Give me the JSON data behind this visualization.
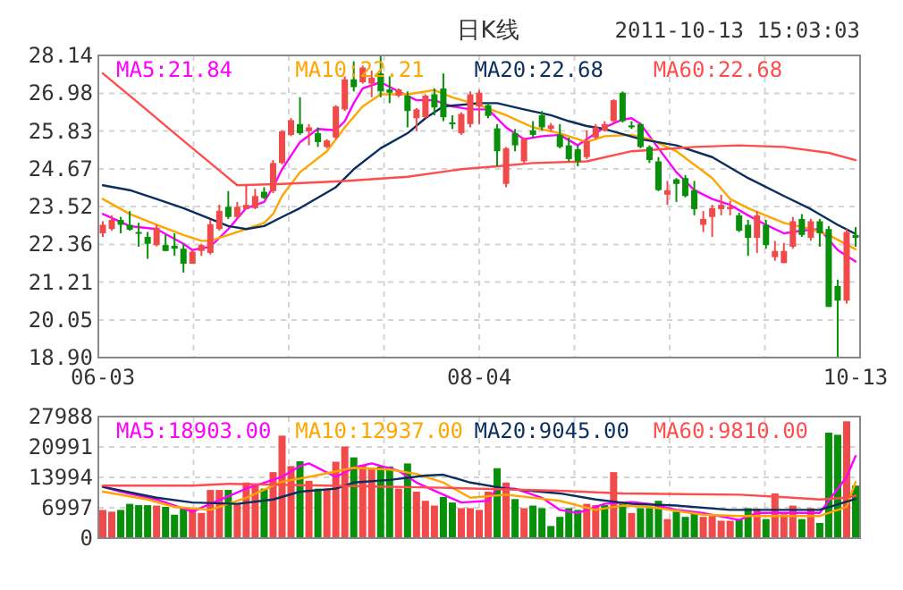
{
  "chart_data": [
    {
      "type": "candlestick",
      "title": "日K线",
      "annotations": [
        "2011-10-13 15:03:03"
      ],
      "categories": [
        "06-03",
        null,
        null,
        null,
        null,
        null,
        null,
        null,
        null,
        null,
        null,
        null,
        null,
        null,
        null,
        null,
        null,
        null,
        null,
        null,
        null,
        null,
        null,
        null,
        null,
        null,
        null,
        null,
        null,
        null,
        null,
        null,
        null,
        null,
        null,
        null,
        null,
        null,
        null,
        null,
        null,
        null,
        "08-04",
        null,
        null,
        null,
        null,
        null,
        null,
        null,
        null,
        null,
        null,
        null,
        null,
        null,
        null,
        null,
        null,
        null,
        null,
        null,
        null,
        null,
        null,
        null,
        null,
        null,
        null,
        null,
        null,
        null,
        null,
        null,
        null,
        null,
        null,
        null,
        null,
        null,
        null,
        null,
        null,
        null,
        "10-13"
      ],
      "ohlc": [
        [
          22.7,
          23.07,
          22.59,
          22.96
        ],
        [
          22.83,
          23.25,
          22.78,
          23.11
        ],
        [
          23.11,
          23.2,
          22.7,
          22.96
        ],
        [
          22.96,
          23.38,
          22.78,
          22.81
        ],
        [
          22.74,
          23.02,
          22.29,
          22.7
        ],
        [
          22.59,
          22.74,
          21.92,
          22.38
        ],
        [
          22.34,
          22.96,
          22.3,
          22.87
        ],
        [
          22.34,
          22.65,
          22.16,
          22.16
        ],
        [
          22.32,
          22.7,
          22.01,
          22.23
        ],
        [
          22.23,
          22.38,
          21.5,
          21.77
        ],
        [
          21.77,
          22.19,
          21.77,
          22.14
        ],
        [
          22.16,
          22.38,
          22.01,
          22.34
        ],
        [
          22.1,
          23.11,
          22.05,
          22.98
        ],
        [
          22.83,
          23.57,
          22.78,
          23.39
        ],
        [
          23.51,
          23.99,
          23.14,
          23.2
        ],
        [
          23.2,
          23.66,
          23.14,
          23.51
        ],
        [
          23.44,
          24.17,
          23.44,
          23.57
        ],
        [
          23.47,
          24.06,
          23.44,
          23.84
        ],
        [
          23.97,
          24.11,
          23.75,
          23.78
        ],
        [
          23.99,
          24.94,
          23.93,
          24.85
        ],
        [
          24.85,
          25.85,
          24.81,
          25.82
        ],
        [
          25.71,
          26.22,
          25.67,
          26.16
        ],
        [
          26.04,
          26.86,
          25.71,
          25.76
        ],
        [
          25.82,
          26.04,
          25.39,
          25.94
        ],
        [
          25.76,
          25.94,
          25.34,
          25.49
        ],
        [
          25.34,
          25.58,
          25.3,
          25.54
        ],
        [
          25.63,
          26.62,
          25.58,
          26.58
        ],
        [
          26.49,
          27.5,
          26.44,
          27.41
        ],
        [
          27.41,
          27.96,
          27.04,
          27.17
        ],
        [
          27.32,
          27.83,
          27.28,
          27.77
        ],
        [
          27.28,
          27.68,
          26.86,
          27.46
        ],
        [
          27.59,
          28.14,
          26.86,
          27.04
        ],
        [
          27.1,
          27.5,
          26.68,
          27.0
        ],
        [
          26.91,
          27.13,
          26.86,
          27.1
        ],
        [
          26.91,
          27.04,
          25.94,
          26.44
        ],
        [
          26.22,
          26.53,
          25.82,
          26.49
        ],
        [
          26.25,
          26.95,
          26.22,
          26.91
        ],
        [
          26.95,
          27.13,
          26.31,
          26.55
        ],
        [
          27.13,
          27.59,
          26.13,
          26.25
        ],
        [
          26.09,
          26.31,
          25.89,
          26.04
        ],
        [
          25.76,
          26.4,
          25.71,
          26.35
        ],
        [
          26.04,
          27.04,
          25.94,
          26.95
        ],
        [
          26.58,
          27.08,
          26.04,
          27.0
        ],
        [
          26.62,
          26.68,
          26.22,
          26.29
        ],
        [
          25.91,
          26.04,
          24.75,
          25.21
        ],
        [
          24.21,
          25.34,
          24.11,
          25.3
        ],
        [
          25.76,
          25.89,
          25.21,
          25.39
        ],
        [
          24.9,
          25.63,
          24.86,
          25.58
        ],
        [
          25.85,
          26.13,
          25.63,
          25.71
        ],
        [
          26.31,
          26.44,
          25.85,
          25.94
        ],
        [
          25.89,
          26.07,
          25.82,
          26.0
        ],
        [
          25.71,
          26.04,
          25.3,
          25.34
        ],
        [
          25.39,
          25.63,
          24.9,
          24.97
        ],
        [
          25.27,
          25.39,
          24.75,
          24.9
        ],
        [
          25.03,
          25.85,
          24.97,
          25.52
        ],
        [
          25.63,
          26.04,
          25.58,
          25.94
        ],
        [
          25.85,
          26.13,
          25.82,
          26.04
        ],
        [
          26.13,
          26.8,
          26.09,
          26.77
        ],
        [
          27.0,
          27.04,
          26.09,
          26.13
        ],
        [
          26.0,
          26.13,
          25.89,
          25.94
        ],
        [
          26.04,
          26.07,
          25.3,
          25.34
        ],
        [
          25.34,
          25.39,
          24.85,
          24.94
        ],
        [
          24.9,
          25.03,
          23.99,
          24.02
        ],
        [
          23.88,
          24.3,
          23.57,
          24.02
        ],
        [
          24.35,
          24.39,
          23.66,
          24.21
        ],
        [
          24.39,
          24.48,
          23.8,
          23.84
        ],
        [
          24.02,
          24.3,
          23.25,
          23.44
        ],
        [
          22.96,
          23.38,
          22.74,
          23.14
        ],
        [
          23.2,
          23.57,
          22.59,
          23.47
        ],
        [
          23.44,
          23.88,
          23.25,
          23.57
        ],
        [
          23.44,
          23.69,
          23.25,
          23.51
        ],
        [
          23.25,
          23.33,
          22.74,
          22.78
        ],
        [
          22.96,
          23.11,
          22.01,
          22.56
        ],
        [
          22.56,
          23.38,
          22.1,
          23.25
        ],
        [
          22.96,
          23.11,
          22.23,
          22.34
        ],
        [
          21.97,
          22.47,
          21.86,
          22.16
        ],
        [
          21.79,
          22.41,
          21.79,
          22.16
        ],
        [
          22.29,
          23.2,
          22.23,
          23.07
        ],
        [
          23.14,
          23.29,
          22.59,
          22.65
        ],
        [
          22.56,
          23.14,
          22.47,
          23.07
        ],
        [
          23.07,
          23.14,
          22.29,
          22.7
        ],
        [
          22.83,
          22.92,
          20.45,
          20.45
        ],
        [
          21.09,
          21.28,
          18.9,
          20.64
        ],
        [
          20.64,
          22.83,
          20.55,
          22.74
        ],
        [
          22.65,
          22.89,
          22.29,
          22.56
        ]
      ],
      "colors": [
        "#f04a4a",
        "#f04a4a",
        "#08900a",
        "#08900a",
        "#08900a",
        "#08900a",
        "#f04a4a",
        "#08900a",
        "#08900a",
        "#08900a",
        "#f04a4a",
        "#f04a4a",
        "#f04a4a",
        "#f04a4a",
        "#08900a",
        "#f04a4a",
        "#f04a4a",
        "#f04a4a",
        "#08900a",
        "#f04a4a",
        "#f04a4a",
        "#f04a4a",
        "#08900a",
        "#f04a4a",
        "#08900a",
        "#f04a4a",
        "#f04a4a",
        "#f04a4a",
        "#08900a",
        "#f04a4a",
        "#f04a4a",
        "#08900a",
        "#08900a",
        "#f04a4a",
        "#08900a",
        "#f04a4a",
        "#f04a4a",
        "#08900a",
        "#08900a",
        "#08900a",
        "#f04a4a",
        "#f04a4a",
        "#f04a4a",
        "#08900a",
        "#08900a",
        "#f04a4a",
        "#08900a",
        "#f04a4a",
        "#08900a",
        "#08900a",
        "#f04a4a",
        "#08900a",
        "#08900a",
        "#08900a",
        "#f04a4a",
        "#f04a4a",
        "#f04a4a",
        "#f04a4a",
        "#08900a",
        "#08900a",
        "#08900a",
        "#08900a",
        "#08900a",
        "#f04a4a",
        "#08900a",
        "#08900a",
        "#08900a",
        "#f04a4a",
        "#f04a4a",
        "#f04a4a",
        "#f04a4a",
        "#08900a",
        "#08900a",
        "#f04a4a",
        "#08900a",
        "#f04a4a",
        "#f04a4a",
        "#f04a4a",
        "#08900a",
        "#f04a4a",
        "#08900a",
        "#08900a",
        "#08900a",
        "#f04a4a",
        "#08900a"
      ],
      "series": [
        {
          "name": "MA5:21.84",
          "type": "line",
          "color": "#ff00ff",
          "values": [
            23.29,
            null,
            null,
            22.92,
            null,
            null,
            22.83,
            null,
            null,
            22.38,
            22.19,
            null,
            22.29,
            null,
            22.83,
            null,
            23.47,
            null,
            23.66,
            24.11,
            24.66,
            null,
            25.49,
            null,
            25.89,
            null,
            25.85,
            26.13,
            26.68,
            27.13,
            null,
            27.32,
            null,
            27.04,
            null,
            26.77,
            null,
            26.77,
            null,
            26.58,
            null,
            26.49,
            null,
            26.49,
            null,
            25.94,
            null,
            25.58,
            null,
            25.67,
            null,
            25.71,
            null,
            25.39,
            25.58,
            null,
            25.94,
            null,
            26.18,
            26.22,
            26.04,
            null,
            25.3,
            null,
            24.57,
            null,
            24.02,
            null,
            23.75,
            null,
            23.57,
            null,
            23.25,
            null,
            22.96,
            null,
            22.7,
            null,
            22.78,
            null,
            22.83,
            null,
            22.19,
            null,
            21.84
          ]
        },
        {
          "name": "MA10:22.21",
          "type": "line",
          "color": "#ffa500",
          "values": [
            23.75,
            null,
            null,
            23.29,
            null,
            null,
            22.96,
            null,
            null,
            22.65,
            null,
            22.47,
            22.47,
            null,
            22.65,
            null,
            22.83,
            null,
            23.02,
            23.29,
            23.84,
            null,
            24.57,
            null,
            null,
            25.21,
            null,
            25.94,
            null,
            26.58,
            null,
            26.95,
            null,
            null,
            26.95,
            null,
            null,
            27.08,
            null,
            26.86,
            null,
            null,
            26.62,
            null,
            null,
            26.31,
            null,
            null,
            25.94,
            null,
            null,
            25.76,
            null,
            null,
            25.49,
            null,
            25.67,
            null,
            null,
            25.71,
            null,
            25.58,
            null,
            null,
            25.21,
            null,
            null,
            null,
            24.39,
            null,
            23.75,
            null,
            23.47,
            null,
            null,
            null,
            23.02,
            null,
            null,
            22.83,
            null,
            22.65,
            null,
            null,
            22.21
          ]
        },
        {
          "name": "MA20:22.68",
          "type": "line",
          "color": "#0a2f5e",
          "values": [
            24.17,
            null,
            null,
            24.02,
            null,
            null,
            23.75,
            null,
            null,
            23.47,
            null,
            null,
            23.14,
            null,
            22.92,
            null,
            22.83,
            null,
            22.92,
            null,
            23.2,
            null,
            23.47,
            null,
            null,
            null,
            24.11,
            null,
            24.66,
            null,
            null,
            25.3,
            null,
            null,
            25.76,
            null,
            26.22,
            null,
            26.58,
            null,
            null,
            null,
            26.68,
            null,
            26.68,
            null,
            null,
            26.49,
            null,
            null,
            26.31,
            null,
            26.13,
            null,
            25.98,
            null,
            25.89,
            null,
            null,
            null,
            25.58,
            null,
            null,
            null,
            25.39,
            null,
            null,
            null,
            25.03,
            null,
            null,
            null,
            24.39,
            null,
            null,
            null,
            23.84,
            null,
            null,
            23.44,
            null,
            null,
            22.96,
            null,
            22.68
          ]
        },
        {
          "name": "MA60:22.68",
          "type": "line",
          "color": "#ff4d4d",
          "values": [
            27.59,
            null,
            null,
            null,
            26.68,
            null,
            null,
            null,
            25.76,
            null,
            null,
            null,
            24.85,
            null,
            null,
            24.17,
            null,
            null,
            null,
            null,
            24.21,
            null,
            null,
            null,
            null,
            null,
            null,
            24.3,
            null,
            null,
            null,
            null,
            null,
            null,
            24.43,
            null,
            null,
            null,
            null,
            null,
            24.66,
            null,
            null,
            null,
            24.75,
            null,
            null,
            null,
            24.85,
            null,
            null,
            null,
            null,
            null,
            24.9,
            null,
            null,
            null,
            null,
            25.21,
            null,
            null,
            null,
            null,
            null,
            null,
            25.34,
            null,
            null,
            null,
            null,
            25.39,
            null,
            null,
            null,
            null,
            25.34,
            null,
            null,
            null,
            null,
            25.16,
            null,
            null,
            24.94
          ]
        }
      ],
      "ylim": [
        18.9,
        28.14
      ],
      "yticks": [
        {
          "value": 18.9,
          "label": "18.90"
        },
        20.05,
        21.21,
        22.36,
        23.52,
        24.67,
        25.83,
        26.98,
        28.14
      ],
      "grid": true,
      "legend": "top"
    },
    {
      "type": "bar",
      "categories": [
        null,
        null,
        null,
        null,
        null,
        null,
        null,
        null,
        null,
        null,
        null,
        null,
        null,
        null,
        null,
        null,
        null,
        null,
        null,
        null,
        null,
        null,
        null,
        null,
        null,
        null,
        null,
        null,
        null,
        null,
        null,
        null,
        null,
        null,
        null,
        null,
        null,
        null,
        null,
        null,
        null,
        null,
        null,
        null,
        null,
        null,
        null,
        null,
        null,
        null,
        null,
        null,
        null,
        null,
        null,
        null,
        null,
        null,
        null,
        null,
        null,
        null,
        null,
        null,
        null,
        null,
        null,
        null,
        null,
        null,
        null,
        null,
        null,
        null,
        null,
        null,
        null,
        null,
        null,
        null,
        null,
        null,
        null,
        null,
        null
      ],
      "values": [
        6500,
        6100,
        6500,
        7900,
        7600,
        7600,
        7500,
        7200,
        5400,
        6800,
        6800,
        5800,
        11100,
        11100,
        11100,
        7900,
        12800,
        12300,
        11400,
        15200,
        23600,
        16600,
        17700,
        13200,
        11400,
        11400,
        17600,
        21100,
        18600,
        16900,
        16200,
        16500,
        16500,
        11400,
        17200,
        10700,
        8600,
        7500,
        9500,
        8200,
        6900,
        6900,
        6500,
        10700,
        16100,
        12800,
        9000,
        6900,
        7500,
        6900,
        2800,
        4900,
        6900,
        6500,
        7900,
        7600,
        7600,
        15200,
        7900,
        5800,
        6900,
        6900,
        8600,
        4400,
        6100,
        4900,
        5800,
        4900,
        5100,
        4000,
        4000,
        4400,
        6900,
        6800,
        4400,
        10300,
        5500,
        7500,
        4400,
        6900,
        3500,
        24300,
        23800,
        26900,
        12100
      ],
      "colors": [
        "#f04a4a",
        "#f04a4a",
        "#08900a",
        "#08900a",
        "#08900a",
        "#08900a",
        "#f04a4a",
        "#08900a",
        "#08900a",
        "#08900a",
        "#f04a4a",
        "#f04a4a",
        "#f04a4a",
        "#f04a4a",
        "#08900a",
        "#f04a4a",
        "#f04a4a",
        "#f04a4a",
        "#08900a",
        "#f04a4a",
        "#f04a4a",
        "#f04a4a",
        "#08900a",
        "#f04a4a",
        "#08900a",
        "#f04a4a",
        "#f04a4a",
        "#f04a4a",
        "#08900a",
        "#f04a4a",
        "#f04a4a",
        "#08900a",
        "#08900a",
        "#f04a4a",
        "#08900a",
        "#f04a4a",
        "#f04a4a",
        "#f04a4a",
        "#08900a",
        "#08900a",
        "#f04a4a",
        "#f04a4a",
        "#f04a4a",
        "#f04a4a",
        "#08900a",
        "#f04a4a",
        "#08900a",
        "#f04a4a",
        "#08900a",
        "#08900a",
        "#08900a",
        "#08900a",
        "#08900a",
        "#08900a",
        "#f04a4a",
        "#f04a4a",
        "#08900a",
        "#f04a4a",
        "#08900a",
        "#f04a4a",
        "#08900a",
        "#08900a",
        "#08900a",
        "#f04a4a",
        "#08900a",
        "#08900a",
        "#08900a",
        "#f04a4a",
        "#f04a4a",
        "#f04a4a",
        "#f04a4a",
        "#08900a",
        "#08900a",
        "#f04a4a",
        "#08900a",
        "#f04a4a",
        "#f04a4a",
        "#f04a4a",
        "#08900a",
        "#f04a4a",
        "#08900a",
        "#08900a",
        "#08900a",
        "#f04a4a",
        "#08900a"
      ],
      "series": [
        {
          "name": "MA5:18903.00",
          "type": "line",
          "color": "#ff00ff",
          "values": [
            11800,
            null,
            10700,
            null,
            null,
            null,
            8900,
            null,
            null,
            null,
            6100,
            null,
            7900,
            null,
            null,
            null,
            11400,
            null,
            null,
            null,
            14100,
            null,
            16600,
            17200,
            null,
            null,
            14100,
            null,
            16200,
            null,
            17200,
            null,
            null,
            15500,
            null,
            12800,
            null,
            null,
            10000,
            null,
            8200,
            null,
            null,
            8600,
            11600,
            null,
            11400,
            null,
            null,
            9300,
            null,
            6500,
            null,
            5800,
            null,
            null,
            7900,
            null,
            null,
            8300,
            null,
            7900,
            null,
            null,
            6500,
            null,
            null,
            5800,
            null,
            null,
            null,
            4200,
            null,
            5800,
            null,
            null,
            null,
            5800,
            null,
            null,
            5800,
            8600,
            null,
            14100,
            18903
          ]
        },
        {
          "name": "MA10:12937.00",
          "type": "line",
          "color": "#ffa500",
          "values": [
            10700,
            null,
            null,
            null,
            null,
            8900,
            null,
            null,
            7200,
            null,
            null,
            null,
            6500,
            null,
            null,
            null,
            9300,
            null,
            null,
            null,
            13000,
            null,
            null,
            14100,
            null,
            null,
            null,
            null,
            16200,
            null,
            null,
            null,
            15800,
            null,
            null,
            14800,
            null,
            null,
            12800,
            null,
            null,
            9300,
            null,
            null,
            null,
            10000,
            null,
            null,
            null,
            null,
            null,
            8600,
            null,
            null,
            null,
            6500,
            null,
            null,
            7500,
            null,
            null,
            7200,
            null,
            null,
            null,
            null,
            null,
            5400,
            null,
            null,
            null,
            5100,
            null,
            null,
            null,
            null,
            null,
            5100,
            null,
            null,
            5100,
            null,
            null,
            7200,
            12937
          ]
        },
        {
          "name": "MA20:9045.00",
          "type": "line",
          "color": "#0a2f5e",
          "values": [
            11800,
            null,
            null,
            null,
            null,
            null,
            9300,
            null,
            null,
            null,
            8200,
            null,
            null,
            null,
            null,
            7900,
            null,
            null,
            null,
            8900,
            null,
            null,
            10700,
            null,
            null,
            null,
            11400,
            null,
            12800,
            null,
            null,
            null,
            13400,
            null,
            null,
            null,
            14400,
            null,
            14600,
            null,
            null,
            12800,
            null,
            null,
            null,
            11400,
            null,
            null,
            null,
            null,
            null,
            10300,
            null,
            null,
            null,
            8900,
            null,
            null,
            null,
            7900,
            null,
            null,
            null,
            null,
            7500,
            null,
            null,
            null,
            null,
            null,
            6500,
            null,
            null,
            null,
            null,
            6500,
            null,
            null,
            null,
            null,
            6500,
            null,
            null,
            null,
            9045
          ]
        },
        {
          "name": "MA60:9810.00",
          "type": "line",
          "color": "#ff4d4d",
          "values": [
            12100,
            null,
            null,
            null,
            null,
            null,
            null,
            null,
            null,
            null,
            12100,
            null,
            null,
            null,
            12500,
            null,
            null,
            null,
            null,
            null,
            null,
            null,
            null,
            null,
            null,
            12100,
            null,
            null,
            null,
            null,
            null,
            null,
            null,
            null,
            null,
            null,
            null,
            null,
            11600,
            null,
            null,
            null,
            null,
            null,
            null,
            null,
            null,
            null,
            null,
            null,
            null,
            10900,
            null,
            null,
            null,
            null,
            null,
            null,
            10300,
            null,
            null,
            null,
            null,
            null,
            null,
            null,
            null,
            null,
            null,
            null,
            null,
            10000,
            null,
            null,
            null,
            null,
            null,
            9300,
            null,
            null,
            8900,
            null,
            null,
            9300,
            9810
          ]
        }
      ],
      "ylim": [
        0,
        27988
      ],
      "yticks": [
        0,
        6997,
        13994,
        20991,
        27988
      ],
      "tick_labels": "y",
      "grid": true,
      "legend": "top"
    }
  ]
}
